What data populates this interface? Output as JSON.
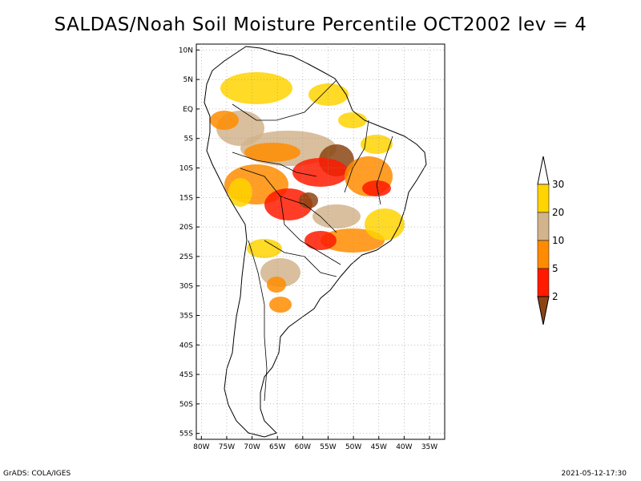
{
  "title": "SALDAS/Noah Soil Moisture Percentile OCT2002 lev = 4",
  "footer": {
    "left": "GrADS: COLA/IGES",
    "right": "2021-05-12-17:30"
  },
  "lat_labels": [
    {
      "lat": 10,
      "label": "10N"
    },
    {
      "lat": 5,
      "label": "5N"
    },
    {
      "lat": 0,
      "label": "EQ"
    },
    {
      "lat": -5,
      "label": "5S"
    },
    {
      "lat": -10,
      "label": "10S"
    },
    {
      "lat": -15,
      "label": "15S"
    },
    {
      "lat": -20,
      "label": "20S"
    },
    {
      "lat": -25,
      "label": "25S"
    },
    {
      "lat": -30,
      "label": "30S"
    },
    {
      "lat": -35,
      "label": "35S"
    },
    {
      "lat": -40,
      "label": "40S"
    },
    {
      "lat": -45,
      "label": "45S"
    },
    {
      "lat": -50,
      "label": "50S"
    },
    {
      "lat": -55,
      "label": "55S"
    }
  ],
  "lon_labels": [
    {
      "lon": -80,
      "label": "80W"
    },
    {
      "lon": -75,
      "label": "75W"
    },
    {
      "lon": -70,
      "label": "70W"
    },
    {
      "lon": -65,
      "label": "65W"
    },
    {
      "lon": -60,
      "label": "60W"
    },
    {
      "lon": -55,
      "label": "55W"
    },
    {
      "lon": -50,
      "label": "50W"
    },
    {
      "lon": -45,
      "label": "45W"
    },
    {
      "lon": -40,
      "label": "40W"
    },
    {
      "lon": -35,
      "label": "35W"
    }
  ],
  "extent": {
    "lon_min": -81,
    "lon_max": -32,
    "lat_min": -56,
    "lat_max": 11
  },
  "legend": {
    "bins": [
      {
        "label": "30",
        "color": "#ffd400"
      },
      {
        "label": "20",
        "color": "#d2b48c"
      },
      {
        "label": "10",
        "color": "#ff8c00"
      },
      {
        "label": "5",
        "color": "#ff1a00"
      },
      {
        "label": "2",
        "color": "#8b4513"
      }
    ],
    "top_color": "#ffffff"
  },
  "map_colors": {
    "land": "#ffffff",
    "coast": "#000000",
    "grid": "#999999"
  }
}
